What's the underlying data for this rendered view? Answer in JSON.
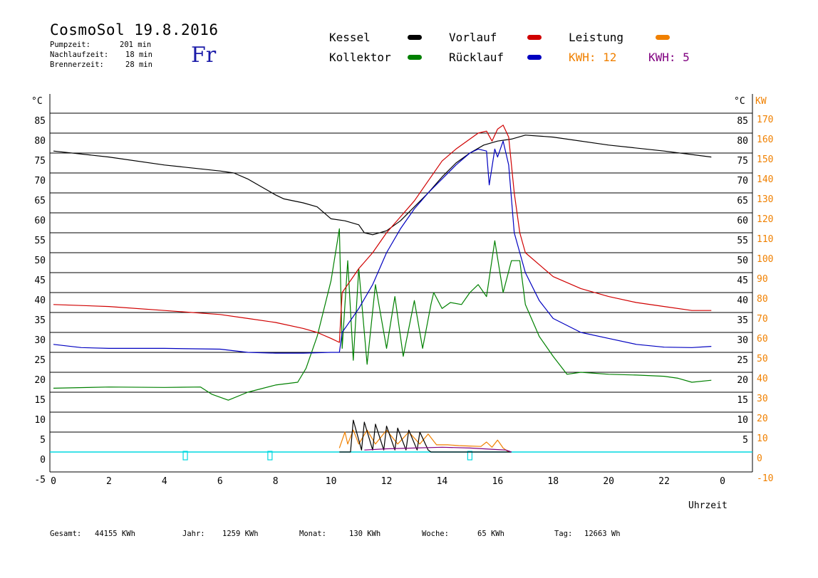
{
  "header": {
    "title": "CosmoSol 19.8.2016",
    "day": "Fr",
    "stats": [
      {
        "label": "Pumpzeit:",
        "value": "201 min"
      },
      {
        "label": "Nachlaufzeit:",
        "value": "18 min"
      },
      {
        "label": "Brennerzeit:",
        "value": "28 min"
      }
    ]
  },
  "legend": {
    "kessel": "Kessel",
    "kollektor": "Kollektor",
    "vorlauf": "Vorlauf",
    "ruecklauf": "Rücklauf",
    "leistung": "Leistung",
    "kwh1": "KWH: 12",
    "kwh2": "KWH: 5"
  },
  "colors": {
    "kessel": "#000000",
    "kollektor": "#008000",
    "vorlauf": "#d00000",
    "ruecklauf": "#0000c0",
    "leistung": "#f08000",
    "kwh2": "#800080",
    "baseline": "#00d8e0"
  },
  "footer": {
    "gesamt_label": "Gesamt:",
    "gesamt_value": "44155 KWh",
    "jahr_label": "Jahr:",
    "jahr_value": "1259 KWh",
    "monat_label": "Monat:",
    "monat_value": "130 KWh",
    "woche_label": "Woche:",
    "woche_value": "65 KWh",
    "tag_label": "Tag:",
    "tag_value": "12663 Wh"
  },
  "chart_data": {
    "type": "line",
    "xlabel": "Uhrzeit",
    "ylabel_left": "°C",
    "ylabel_right_1": "°C",
    "ylabel_right_2": "KW",
    "xlim": [
      0,
      24
    ],
    "ylim": [
      -5,
      90
    ],
    "x_ticks": [
      "0",
      "2",
      "4",
      "6",
      "8",
      "10",
      "12",
      "14",
      "16",
      "18",
      "20",
      "22",
      "0"
    ],
    "y_ticks_left": [
      "85",
      "80",
      "75",
      "70",
      "65",
      "60",
      "55",
      "50",
      "45",
      "40",
      "35",
      "30",
      "25",
      "20",
      "15",
      "10",
      "5",
      "0",
      "-5"
    ],
    "y_ticks_right": [
      "85",
      "80",
      "75",
      "70",
      "65",
      "60",
      "55",
      "50",
      "45",
      "40",
      "35",
      "30",
      "25",
      "20",
      "15",
      "10",
      "5"
    ],
    "y_ticks_kw": [
      "170",
      "160",
      "150",
      "140",
      "130",
      "120",
      "110",
      "100",
      "90",
      "80",
      "70",
      "60",
      "50",
      "40",
      "30",
      "20",
      "10",
      "0",
      "-10"
    ],
    "grid": true,
    "series": [
      {
        "name": "Kessel",
        "key": "kessel",
        "x": [
          0,
          2,
          4,
          6,
          6.5,
          7,
          7.5,
          8,
          8.3,
          9,
          9.5,
          10,
          10.5,
          11,
          11.2,
          11.5,
          12,
          12.5,
          13,
          13.5,
          14,
          14.5,
          15,
          15.5,
          16,
          16.5,
          17,
          18,
          20,
          22,
          23.7
        ],
        "y": [
          75.5,
          74,
          72,
          70.5,
          70,
          68.5,
          66.5,
          64.5,
          63.5,
          62.5,
          61.5,
          58.5,
          58,
          57,
          55,
          54.5,
          55.5,
          58,
          61.5,
          65,
          69,
          72.5,
          75,
          77,
          78,
          78.5,
          79.5,
          79,
          77,
          75.5,
          74
        ]
      },
      {
        "name": "Kollektor",
        "key": "kollektor",
        "x": [
          0,
          2,
          4,
          5.3,
          5.7,
          6.3,
          7,
          8,
          8.8,
          9.1,
          9.5,
          10,
          10.3,
          10.4,
          10.6,
          10.8,
          11,
          11.3,
          11.6,
          12,
          12.3,
          12.6,
          13,
          13.3,
          13.6,
          13.7,
          14,
          14.3,
          14.7,
          15,
          15.3,
          15.6,
          15.9,
          16.2,
          16.5,
          16.8,
          17,
          17.5,
          18,
          18.5,
          19,
          20,
          21,
          22,
          22.5,
          23,
          23.7
        ],
        "y": [
          16,
          16.3,
          16.2,
          16.3,
          14.5,
          13,
          15,
          16.8,
          17.5,
          21,
          29,
          43,
          56,
          26,
          48,
          23,
          46,
          22,
          42,
          26,
          39,
          24,
          38,
          26,
          37,
          40,
          36,
          37.5,
          37,
          40,
          42,
          39,
          53,
          40,
          48,
          48,
          37,
          29,
          24,
          19.5,
          20,
          19.5,
          19.3,
          19,
          18.5,
          17.5,
          18
        ]
      },
      {
        "name": "Vorlauf",
        "key": "vorlauf",
        "x": [
          0,
          2,
          4,
          6,
          7,
          8,
          9,
          9.5,
          10,
          10.3,
          10.4,
          10.6,
          10.8,
          11,
          11.5,
          12,
          12.5,
          13,
          13.5,
          14,
          14.5,
          15,
          15.3,
          15.6,
          15.8,
          16,
          16.2,
          16.4,
          16.6,
          16.8,
          17,
          17.5,
          18,
          19,
          20,
          21,
          22,
          23,
          23.7
        ],
        "y": [
          37,
          36.5,
          35.5,
          34.5,
          33.5,
          32.5,
          31,
          30,
          28.5,
          27.5,
          40,
          42,
          44,
          46,
          50,
          55,
          59,
          63,
          68,
          73,
          76,
          78.5,
          80,
          80.5,
          78,
          81,
          82,
          79,
          65,
          55,
          50,
          47,
          44,
          41,
          39,
          37.5,
          36.5,
          35.5,
          35.5
        ]
      },
      {
        "name": "Rücklauf",
        "key": "ruecklauf",
        "x": [
          0,
          1,
          2,
          4,
          6,
          7,
          8,
          9,
          10,
          10.3,
          10.4,
          10.6,
          10.8,
          11,
          11.5,
          12,
          12.5,
          13,
          13.5,
          14,
          14.5,
          15,
          15.3,
          15.6,
          15.7,
          15.9,
          16,
          16.2,
          16.4,
          16.6,
          17,
          17.5,
          18,
          19,
          20,
          21,
          22,
          23,
          23.7
        ],
        "y": [
          27,
          26.2,
          26,
          26,
          25.8,
          25,
          24.8,
          24.8,
          25,
          25,
          30,
          32,
          34,
          36,
          42,
          50,
          56,
          61,
          65,
          68.5,
          72,
          75,
          76,
          75.5,
          67,
          76,
          74,
          78,
          72,
          55,
          45,
          38,
          33.5,
          30,
          28.5,
          27,
          26.3,
          26.2,
          26.5
        ]
      },
      {
        "name": "Leistung",
        "key": "leistung",
        "x": [
          10.3,
          10.5,
          10.6,
          10.8,
          11,
          11.3,
          11.6,
          12,
          12.4,
          12.8,
          13.2,
          13.5,
          13.8,
          14.2,
          14.6,
          15,
          15.4,
          15.6,
          15.8,
          16,
          16.2,
          16.4
        ],
        "y": [
          1,
          5,
          2,
          5.5,
          2,
          5.5,
          2,
          5.5,
          2,
          5,
          2,
          4.5,
          1.8,
          1.8,
          1.6,
          1.5,
          1.4,
          2.5,
          1.2,
          3,
          1,
          0
        ]
      },
      {
        "name": "Brenner",
        "key": "kessel",
        "x": [
          10.3,
          10.7,
          10.8,
          11.1,
          11.2,
          11.5,
          11.6,
          11.9,
          12,
          12.3,
          12.4,
          12.7,
          12.8,
          13.1,
          13.2,
          13.5,
          13.6,
          16.5
        ],
        "y": [
          0,
          0,
          8,
          0.5,
          7.5,
          0.5,
          7,
          0.5,
          6.5,
          0.5,
          6,
          0.5,
          5.5,
          0.5,
          5,
          0.5,
          0,
          0
        ]
      },
      {
        "name": "KWH 5",
        "key": "kwh2",
        "x": [
          11.2,
          12,
          13,
          14,
          15,
          15.5,
          16,
          16.3,
          16.5
        ],
        "y": [
          0.5,
          0.8,
          1,
          1.2,
          1,
          0.8,
          0.6,
          0.5,
          0
        ]
      }
    ],
    "markers_x": [
      4.75,
      7.8,
      15
    ]
  }
}
